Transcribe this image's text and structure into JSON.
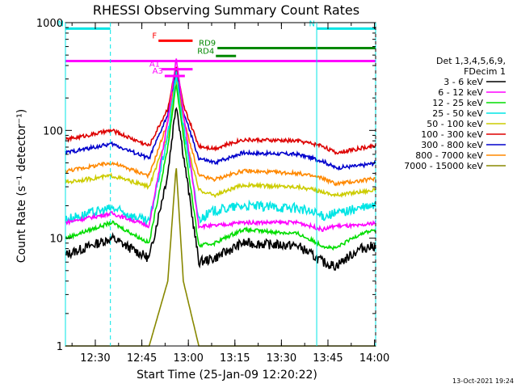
{
  "chart_data": {
    "type": "line",
    "title": "RHESSI Observing Summary Count Rates",
    "xlabel": "Start Time (25-Jan-09 12:20:22)",
    "ylabel": "Count Rate (s⁻¹ detector⁻¹)",
    "yscale": "log",
    "ylim": [
      1,
      1000
    ],
    "xlim_minutes": [
      0,
      100
    ],
    "x_tick_labels": [
      "12:30",
      "12:45",
      "13:00",
      "13:15",
      "13:30",
      "13:45",
      "14:00"
    ],
    "x_tick_minutes": [
      9.63,
      24.63,
      39.63,
      54.63,
      69.63,
      84.63,
      99.63
    ],
    "y_tick_labels": [
      "1",
      "10",
      "100",
      "1000"
    ],
    "y_tick_values": [
      1,
      10,
      100,
      1000
    ],
    "legend": {
      "header": [
        "Det 1,3,4,5,6,9,",
        "FDecim 1"
      ],
      "placement": "right"
    },
    "series": [
      {
        "name": "3 - 6 keV",
        "color": "#000000",
        "x_minutes": [
          0,
          15,
          27,
          33,
          35.7,
          38,
          43,
          48,
          57,
          75,
          83,
          87,
          95,
          100
        ],
        "values": [
          7,
          10,
          6.5,
          40,
          180,
          60,
          6,
          6.5,
          9,
          8.5,
          6,
          5.5,
          8,
          8.5
        ]
      },
      {
        "name": "6 - 12 keV",
        "color": "#ff00ff",
        "x_minutes": [
          0,
          15,
          27,
          33,
          35.7,
          38,
          43,
          48,
          57,
          75,
          83,
          87,
          95,
          100
        ],
        "values": [
          14,
          17,
          13,
          120,
          470,
          150,
          13,
          13,
          14,
          14,
          12,
          13,
          13,
          14
        ]
      },
      {
        "name": "12 - 25 keV",
        "color": "#00dd00",
        "x_minutes": [
          0,
          15,
          27,
          33,
          35.7,
          38,
          43,
          48,
          57,
          75,
          83,
          87,
          95,
          100
        ],
        "values": [
          10,
          14,
          9,
          70,
          270,
          90,
          8.5,
          9,
          12,
          11,
          8.5,
          8,
          11,
          12
        ]
      },
      {
        "name": "25 - 50 keV",
        "color": "#00e5e5",
        "x_minutes": [
          0,
          15,
          27,
          33,
          35.7,
          38,
          43,
          48,
          57,
          75,
          83,
          87,
          95,
          100
        ],
        "values": [
          15,
          19,
          14,
          90,
          330,
          110,
          15,
          18,
          20,
          19,
          16,
          17,
          19,
          20
        ]
      },
      {
        "name": "50 - 100 keV",
        "color": "#cccc00",
        "x_minutes": [
          0,
          15,
          27,
          33,
          35.7,
          38,
          43,
          48,
          57,
          75,
          83,
          87,
          95,
          100
        ],
        "values": [
          33,
          38,
          30,
          90,
          300,
          100,
          28,
          25,
          31,
          30,
          27,
          25,
          27,
          28
        ]
      },
      {
        "name": "100 - 300 keV",
        "color": "#dd0000",
        "x_minutes": [
          0,
          15,
          27,
          33,
          35.7,
          38,
          43,
          48,
          57,
          75,
          83,
          87,
          95,
          100
        ],
        "values": [
          82,
          100,
          72,
          160,
          400,
          170,
          72,
          68,
          82,
          80,
          72,
          62,
          68,
          72
        ]
      },
      {
        "name": "300 - 800 keV",
        "color": "#0000cc",
        "x_minutes": [
          0,
          15,
          27,
          33,
          35.7,
          38,
          43,
          48,
          57,
          75,
          83,
          87,
          95,
          100
        ],
        "values": [
          62,
          75,
          55,
          140,
          380,
          150,
          55,
          50,
          62,
          60,
          52,
          45,
          47,
          50
        ]
      },
      {
        "name": "800 - 7000 keV",
        "color": "#ff8800",
        "x_minutes": [
          0,
          15,
          27,
          33,
          35.7,
          38,
          43,
          48,
          57,
          75,
          83,
          87,
          95,
          100
        ],
        "values": [
          42,
          50,
          38,
          120,
          360,
          130,
          38,
          35,
          42,
          40,
          36,
          32,
          34,
          36
        ]
      },
      {
        "name": "7000 - 15000 keV",
        "color": "#888800",
        "x_minutes": [
          0,
          15,
          27,
          33,
          35.7,
          38,
          43,
          48,
          57,
          75,
          83,
          87,
          95,
          100
        ],
        "values": [
          1,
          1,
          1,
          4,
          47,
          4,
          1,
          1,
          1,
          1,
          1,
          1,
          1,
          1
        ]
      }
    ],
    "flags": [
      {
        "name": "N",
        "color": "#00e5e5",
        "x_start_minutes": 0,
        "x_end_minutes": 14.5,
        "level": 880
      },
      {
        "name": "N",
        "color": "#00e5e5",
        "x_start_minutes": 81,
        "x_end_minutes": 100,
        "level": 880
      },
      {
        "name": "RD9",
        "color": "#008800",
        "x_start_minutes": 49,
        "x_end_minutes": 100,
        "level": 580
      },
      {
        "name": "RD4",
        "color": "#008800",
        "x_start_minutes": 48.5,
        "x_end_minutes": 55,
        "level": 490
      },
      {
        "name": "",
        "color": "#ff00ff",
        "x_start_minutes": 0,
        "x_end_minutes": 100,
        "level": 440
      },
      {
        "name": "A1",
        "color": "#ff00ff",
        "x_start_minutes": 31,
        "x_end_minutes": 41,
        "level": 370
      },
      {
        "name": "A3",
        "color": "#ff00ff",
        "x_start_minutes": 32,
        "x_end_minutes": 38.5,
        "level": 320
      },
      {
        "name": "F",
        "color": "#ff0000",
        "x_start_minutes": 30,
        "x_end_minutes": 41,
        "level": 680
      }
    ],
    "saa_boundaries_minutes": [
      0,
      14.5,
      81,
      100
    ]
  },
  "footer": {
    "timestamp": "13-Oct-2021 19:24"
  }
}
